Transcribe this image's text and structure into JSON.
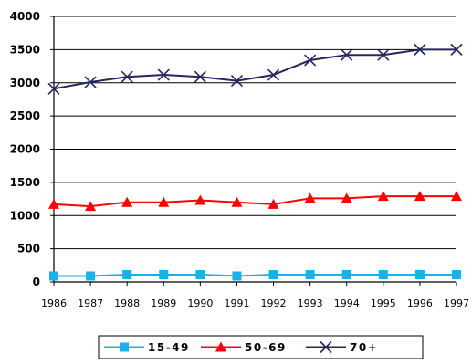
{
  "chart_data": {
    "type": "line",
    "title": "",
    "xlabel": "",
    "ylabel": "",
    "ylim": [
      0,
      4000
    ],
    "yticks": [
      "0",
      "500",
      "1000",
      "1500",
      "2000",
      "2500",
      "3000",
      "3500",
      "4000"
    ],
    "categories": [
      "1986",
      "1987",
      "1988",
      "1989",
      "1990",
      "1991",
      "1992",
      "1993",
      "1994",
      "1995",
      "1996",
      "1997"
    ],
    "grid": "horizontal",
    "legend_position": "bottom",
    "series": [
      {
        "name": "15-49",
        "marker": "square",
        "color": "#1ab0e8",
        "values": [
          90,
          90,
          110,
          110,
          110,
          90,
          110,
          110,
          110,
          110,
          110,
          110
        ]
      },
      {
        "name": "50-69",
        "marker": "triangle",
        "color": "#ff0000",
        "values": [
          1170,
          1140,
          1200,
          1200,
          1230,
          1200,
          1170,
          1260,
          1260,
          1290,
          1290,
          1290
        ]
      },
      {
        "name": "70+",
        "marker": "x",
        "color": "#26265e",
        "values": [
          2910,
          3010,
          3090,
          3120,
          3090,
          3030,
          3120,
          3340,
          3420,
          3420,
          3500,
          3500
        ]
      }
    ]
  }
}
